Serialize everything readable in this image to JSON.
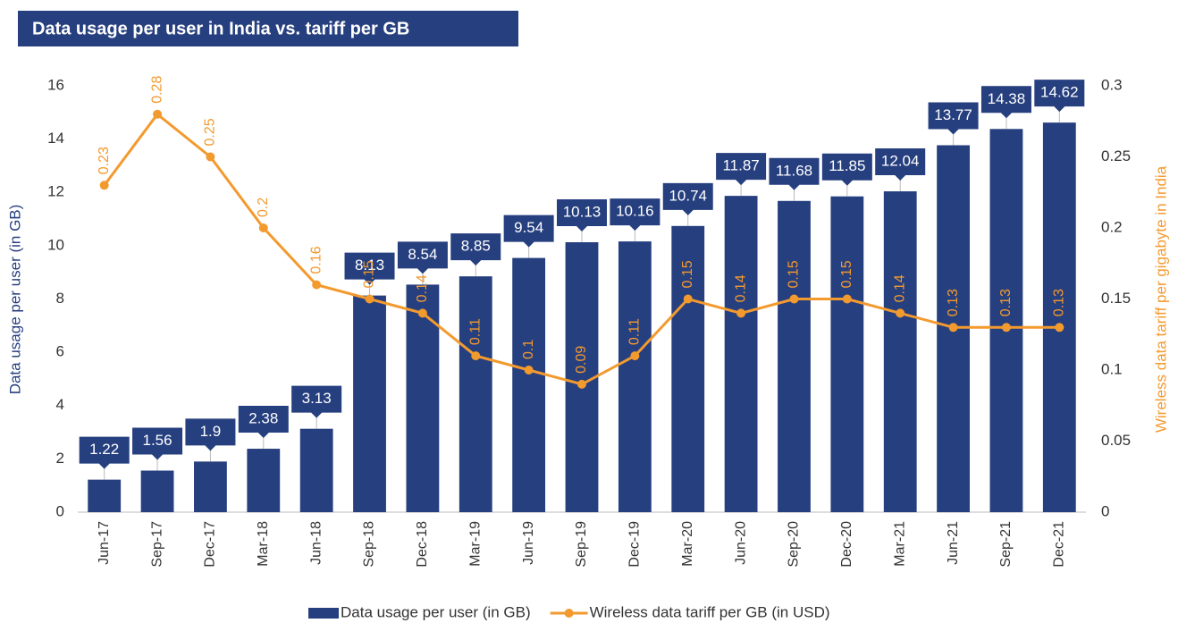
{
  "chart_data": {
    "type": "bar",
    "title": "Data usage per user in India vs. tariff per GB",
    "y_label": "Data usage per user (in GB)",
    "y2_label": "Wireless data tariff per gigabyte in India",
    "categories": [
      "Jun-17",
      "Sep-17",
      "Dec-17",
      "Mar-18",
      "Jun-18",
      "Sep-18",
      "Dec-18",
      "Mar-19",
      "Jun-19",
      "Sep-19",
      "Dec-19",
      "Mar-20",
      "Jun-20",
      "Sep-20",
      "Dec-20",
      "Mar-21",
      "Jun-21",
      "Sep-21",
      "Dec-21"
    ],
    "series": [
      {
        "name": "Data usage per user (in GB)",
        "type": "bar",
        "color": "#263f7f",
        "values": [
          1.22,
          1.56,
          1.9,
          2.38,
          3.13,
          8.13,
          8.54,
          8.85,
          9.54,
          10.13,
          10.16,
          10.74,
          11.87,
          11.68,
          11.85,
          12.04,
          13.77,
          14.38,
          14.62
        ]
      },
      {
        "name": "Wireless data tariff per GB (in USD)",
        "type": "line",
        "axis": "y2",
        "color": "#f39a2e",
        "values": [
          0.23,
          0.28,
          0.25,
          0.2,
          0.16,
          0.15,
          0.14,
          0.11,
          0.1,
          0.09,
          0.11,
          0.15,
          0.14,
          0.15,
          0.15,
          0.14,
          0.13,
          0.13,
          0.13
        ]
      }
    ],
    "ylim": [
      0,
      16
    ],
    "yticks": [
      0,
      2,
      4,
      6,
      8,
      10,
      12,
      14,
      16
    ],
    "y2lim": [
      0,
      0.3
    ],
    "y2ticks": [
      0,
      0.05,
      0.1,
      0.15,
      0.2,
      0.25,
      0.3
    ],
    "legend": "bottom"
  }
}
